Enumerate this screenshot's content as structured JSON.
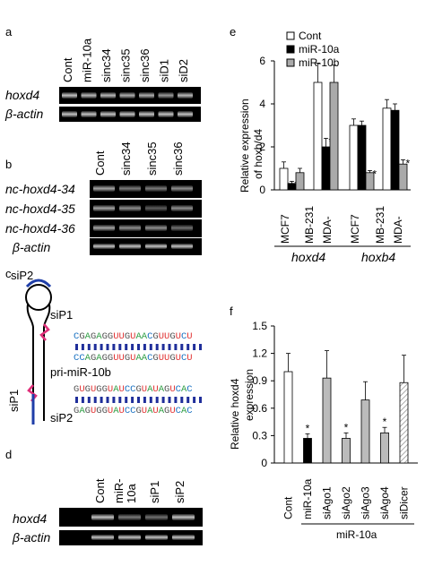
{
  "panels": {
    "a": {
      "letter": "a",
      "lanes": [
        "Cont",
        "miR-10a",
        "sinc34",
        "sinc35",
        "sinc36",
        "siD1",
        "siD2"
      ],
      "rows": [
        "hoxd4",
        "β-actin"
      ]
    },
    "b": {
      "letter": "b",
      "lanes": [
        "Cont",
        "sinc34",
        "sinc35",
        "sinc36"
      ],
      "rows": [
        "nc-hoxd4-34",
        "nc-hoxd4-35",
        "nc-hoxd4-36",
        "β-actin"
      ]
    },
    "c": {
      "letter": "c",
      "siP1": "siP1",
      "siP2": "siP2",
      "pri": "pri-miR-10b",
      "seq1a": "CGAGAGGUUGUAACGUUGUCU",
      "seq1b": "CCAGAGGUUGUAACGUUGUCU",
      "seq2a": "GUGUGGUAUCCGUAUAGUCAC",
      "seq2b": "GAGUGGUAUCCGUAUAGUCAC"
    },
    "d": {
      "letter": "d",
      "lanes": [
        "Cont",
        "miR-\n10a",
        "siP1",
        "siP2"
      ],
      "lane_cont": "Cont",
      "lane_mir1": "miR-",
      "lane_mir2": "10a",
      "lane_sip1": "siP1",
      "lane_sip2": "siP2",
      "rows": [
        "hoxd4",
        "β-actin"
      ]
    },
    "e": {
      "letter": "e",
      "ylabel_1": "Relative expression",
      "ylabel_2": "of hoxb/d4",
      "groups": [
        "hoxd4",
        "hoxb4"
      ],
      "xcats": [
        "MCF7",
        "MB-231",
        "MDA-"
      ],
      "legend": [
        "Cont",
        "miR-10a",
        "miR-10b"
      ]
    },
    "f": {
      "letter": "f",
      "ylabel_1": "Relative hoxd4",
      "ylabel_2": "expression",
      "group_label": "miR-10a"
    }
  },
  "chart_data": [
    {
      "type": "bar",
      "panel": "e",
      "categories": [
        "MCF7 (hoxd4)",
        "MDA-MB-231 (hoxd4)",
        "MCF7 (hoxb4)",
        "MDA-MB-231 (hoxb4)"
      ],
      "series": [
        {
          "name": "Cont",
          "values": [
            1.0,
            5.0,
            3.0,
            3.8
          ],
          "errors": [
            0.3,
            0.9,
            0.3,
            0.4
          ],
          "color": "#ffffff"
        },
        {
          "name": "miR-10a",
          "values": [
            0.3,
            2.0,
            3.0,
            3.7
          ],
          "errors": [
            0.1,
            0.4,
            0.2,
            0.3
          ],
          "color": "#000000"
        },
        {
          "name": "miR-10b",
          "values": [
            0.8,
            5.0,
            0.8,
            1.2
          ],
          "errors": [
            0.2,
            0.8,
            0.1,
            0.2
          ],
          "color": "#aaaaaa"
        }
      ],
      "significance": [
        [
          false,
          true,
          false
        ],
        [
          false,
          true,
          false
        ],
        [
          false,
          false,
          true
        ],
        [
          false,
          false,
          true
        ]
      ],
      "ylim": [
        0,
        6
      ],
      "yticks": [
        0,
        2,
        4,
        6
      ]
    },
    {
      "type": "bar",
      "panel": "f",
      "categories": [
        "Cont",
        "miR-10a",
        "siAgo1",
        "siAgo2",
        "siAgo3",
        "siAgo4",
        "siDicer"
      ],
      "values": [
        1.0,
        0.27,
        0.93,
        0.27,
        0.69,
        0.33,
        0.88
      ],
      "errors": [
        0.2,
        0.05,
        0.3,
        0.06,
        0.2,
        0.06,
        0.3
      ],
      "significant": [
        false,
        true,
        false,
        true,
        false,
        true,
        false
      ],
      "styles": [
        "white",
        "black",
        "gray",
        "gray",
        "gray",
        "gray",
        "hatch"
      ],
      "ylim": [
        0,
        1.5
      ],
      "yticks": [
        0,
        0.3,
        0.6,
        0.9,
        1.2,
        1.5
      ]
    }
  ]
}
